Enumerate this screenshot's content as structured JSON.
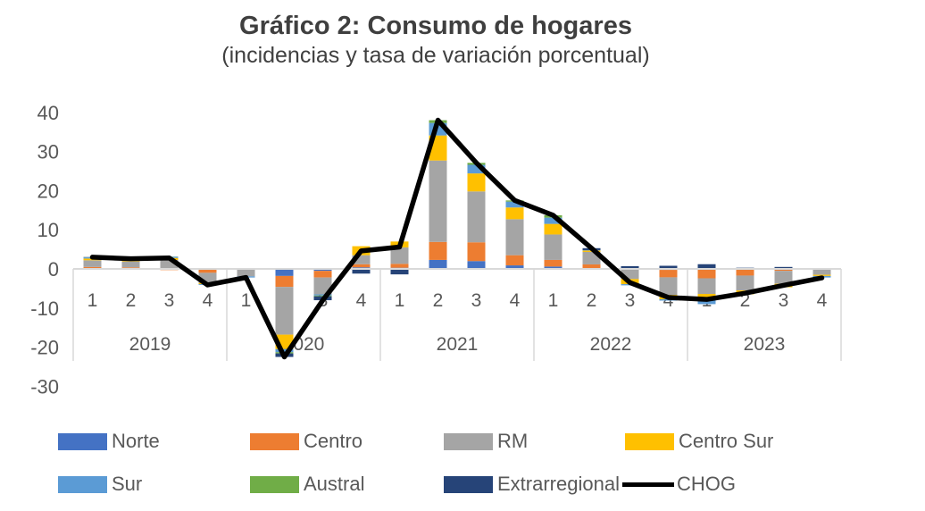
{
  "title": "Gráfico 2: Consumo de hogares",
  "subtitle": "(incidencias y tasa de variación porcentual)",
  "chart_data": {
    "type": "bar",
    "subtype": "stacked-bars-with-line-overlay",
    "title": "Gráfico 2: Consumo de hogares",
    "subtitle": "(incidencias y tasa de variación porcentual)",
    "years": [
      "2019",
      "2020",
      "2021",
      "2022",
      "2023"
    ],
    "quarters_per_year": [
      "1",
      "2",
      "3",
      "4"
    ],
    "y_axis": {
      "min": -30,
      "max": 40,
      "step": 10,
      "ticks": [
        "40",
        "30",
        "20",
        "10",
        "0",
        "-10",
        "-20",
        "-30"
      ]
    },
    "grid": "off",
    "legend_position": "bottom",
    "series": [
      {
        "name": "Norte",
        "color": "#4472C4",
        "values": [
          0.15,
          0.1,
          0.1,
          0,
          0,
          -1.8,
          -0.5,
          0.4,
          0.3,
          2.3,
          2.0,
          0.9,
          0.6,
          0.15,
          0,
          -0.25,
          -0.1,
          0,
          0,
          0
        ]
      },
      {
        "name": "Centro",
        "color": "#ED7D31",
        "values": [
          0.35,
          0.3,
          -0.3,
          -1.0,
          -0.2,
          -2.8,
          -1.7,
          0.8,
          1.0,
          4.6,
          4.8,
          2.6,
          1.7,
          1.0,
          -0.2,
          -1.9,
          -2.3,
          -1.7,
          -0.5,
          0
        ]
      },
      {
        "name": "RM",
        "color": "#A5A5A5",
        "values": [
          1.7,
          1.5,
          2.2,
          -2.6,
          -1.7,
          -12.2,
          -4.3,
          2.3,
          4.2,
          20.8,
          13.0,
          9.2,
          6.5,
          3.2,
          -2.4,
          -4.5,
          -4.0,
          -3.8,
          -3.3,
          -1.5
        ]
      },
      {
        "name": "Centro Sur",
        "color": "#FFC000",
        "values": [
          0.45,
          0.4,
          0.5,
          -0.3,
          0,
          -3.7,
          0,
          2.3,
          1.5,
          6.4,
          4.6,
          3.0,
          2.7,
          0.35,
          -1.3,
          -1.1,
          -1.6,
          -1.0,
          -0.9,
          -0.3
        ]
      },
      {
        "name": "Sur",
        "color": "#5B9BD5",
        "values": [
          0.3,
          0.25,
          0.3,
          -0.2,
          -0.3,
          -0.8,
          -0.3,
          0,
          0,
          3.2,
          2.2,
          1.5,
          1.6,
          0.1,
          -0.3,
          -0.35,
          -1.0,
          0,
          0,
          -0.4
        ]
      },
      {
        "name": "Austral",
        "color": "#70AD47",
        "values": [
          0.05,
          0.05,
          0.05,
          0,
          0,
          -0.3,
          -0.2,
          0,
          0,
          0.7,
          0.5,
          0.3,
          0.6,
          0,
          0,
          0,
          0,
          0,
          0,
          0
        ]
      },
      {
        "name": "Extrarregional",
        "color": "#264478",
        "values": [
          0.05,
          0,
          0,
          0,
          0,
          -0.9,
          -1.0,
          -1.2,
          -1.4,
          0,
          0,
          0,
          0,
          0.5,
          0.7,
          0.8,
          1.2,
          0.3,
          0.5,
          0
        ]
      }
    ],
    "line_series": {
      "name": "CHOG",
      "color": "#000000",
      "values": [
        3.0,
        2.6,
        2.8,
        -4.1,
        -2.2,
        -22.5,
        -8.0,
        4.6,
        5.6,
        38.0,
        27.1,
        17.5,
        13.7,
        5.3,
        -3.5,
        -7.3,
        -7.8,
        -6.2,
        -4.2,
        -2.3
      ]
    },
    "colors": {
      "title_text": "#3f3f3f",
      "axis_text": "#595959",
      "axis_line": "#D9D9D9"
    }
  }
}
